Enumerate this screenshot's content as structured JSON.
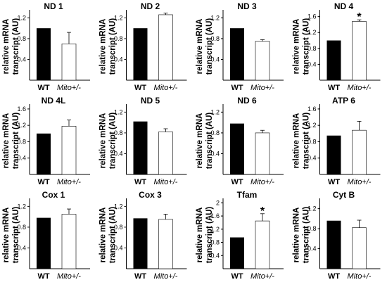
{
  "chart_data": [
    {
      "type": "bar",
      "title": "ND 1",
      "ylabel": "relative mRNA transcript (AU)",
      "categories": [
        "WT",
        "Mito+/-"
      ],
      "values": [
        1.0,
        0.7
      ],
      "errors": [
        0,
        0.22
      ],
      "yticks": [
        "0.4",
        "0.8",
        "1.2"
      ],
      "ylim": [
        0,
        1.3
      ],
      "significant": [
        false,
        false
      ]
    },
    {
      "type": "bar",
      "title": "ND 2",
      "ylabel": "relative mRNA transcript (AU)",
      "categories": [
        "WT",
        "Mito+/-"
      ],
      "values": [
        1.0,
        1.26
      ],
      "errors": [
        0,
        0.03
      ],
      "yticks": [
        "0.4",
        "0.8",
        "1.2"
      ],
      "ylim": [
        0,
        1.3
      ],
      "significant": [
        false,
        false
      ]
    },
    {
      "type": "bar",
      "title": "ND 3",
      "ylabel": "relative mRNA transcript (AU)",
      "categories": [
        "WT",
        "Mito+/-"
      ],
      "values": [
        1.0,
        0.75
      ],
      "errors": [
        0,
        0.03
      ],
      "yticks": [
        "0.4",
        "0.8",
        "1.2"
      ],
      "ylim": [
        0,
        1.3
      ],
      "significant": [
        false,
        false
      ]
    },
    {
      "type": "bar",
      "title": "ND 4",
      "ylabel": "relative mRNA transcript (AU)",
      "categories": [
        "WT",
        "Mito+/-"
      ],
      "values": [
        1.0,
        1.48
      ],
      "errors": [
        0,
        0.04
      ],
      "yticks": [
        "0.4",
        "0.8",
        "1.2",
        "1.6"
      ],
      "ylim": [
        0,
        1.7
      ],
      "significant": [
        false,
        true
      ]
    },
    {
      "type": "bar",
      "title": "ND 4L",
      "ylabel": "relative mRNA transcript (AU)",
      "categories": [
        "WT",
        "Mito+/-"
      ],
      "values": [
        1.0,
        1.18
      ],
      "errors": [
        0,
        0.15
      ],
      "yticks": [
        "0.4",
        "0.8",
        "1.2",
        "1.6"
      ],
      "ylim": [
        0,
        1.65
      ],
      "significant": [
        false,
        false
      ]
    },
    {
      "type": "bar",
      "title": "ND 5",
      "ylabel": "relative mRNA transcript (AU)",
      "categories": [
        "WT",
        "Mito+/-"
      ],
      "values": [
        1.02,
        0.82
      ],
      "errors": [
        0,
        0.06
      ],
      "yticks": [
        "0.4",
        "0.8",
        "1.2"
      ],
      "ylim": [
        0,
        1.3
      ],
      "significant": [
        false,
        false
      ]
    },
    {
      "type": "bar",
      "title": "ND 6",
      "ylabel": "relative mRNA transcript (AU)",
      "categories": [
        "WT",
        "Mito+/-"
      ],
      "values": [
        0.98,
        0.8
      ],
      "errors": [
        0,
        0.05
      ],
      "yticks": [
        "0.4",
        "0.8",
        "1.2"
      ],
      "ylim": [
        0,
        1.3
      ],
      "significant": [
        false,
        false
      ]
    },
    {
      "type": "bar",
      "title": "ATP 6",
      "ylabel": "relative mRNA transcript (AU)",
      "categories": [
        "WT",
        "Mito+/-"
      ],
      "values": [
        0.95,
        1.08
      ],
      "errors": [
        0,
        0.22
      ],
      "yticks": [
        "0.4",
        "0.8",
        "1.2",
        "1.6"
      ],
      "ylim": [
        0,
        1.65
      ],
      "significant": [
        false,
        false
      ]
    },
    {
      "type": "bar",
      "title": "Cox 1",
      "ylabel": "relative mRNA transcript (AU)",
      "categories": [
        "WT",
        "Mito+/-"
      ],
      "values": [
        0.98,
        1.05
      ],
      "errors": [
        0,
        0.1
      ],
      "yticks": [
        "0.4",
        "0.8",
        "1.2"
      ],
      "ylim": [
        0,
        1.3
      ],
      "significant": [
        false,
        false
      ]
    },
    {
      "type": "bar",
      "title": "Cox 3",
      "ylabel": "relative mRNA transcript (AU)",
      "categories": [
        "WT",
        "Mito+/-"
      ],
      "values": [
        0.97,
        0.95
      ],
      "errors": [
        0,
        0.1
      ],
      "yticks": [
        "0.4",
        "0.8",
        "1.2"
      ],
      "ylim": [
        0,
        1.3
      ],
      "significant": [
        false,
        false
      ]
    },
    {
      "type": "bar",
      "title": "Tfam",
      "ylabel": "relative mRNA transcript (AU)",
      "categories": [
        "WT",
        "Mito+/-"
      ],
      "values": [
        0.95,
        1.45
      ],
      "errors": [
        0,
        0.22
      ],
      "yticks": [
        "0.4",
        "0.8",
        "1.2",
        "1.6",
        "2"
      ],
      "ylim": [
        0,
        2.05
      ],
      "significant": [
        false,
        true
      ]
    },
    {
      "type": "bar",
      "title": "Cyt B",
      "ylabel": "relative mRNA transcript (AU)",
      "categories": [
        "WT",
        "Mito+/-"
      ],
      "values": [
        0.96,
        0.82
      ],
      "errors": [
        0,
        0.15
      ],
      "yticks": [
        "0.4",
        "0.8",
        "1.2"
      ],
      "ylim": [
        0,
        1.35
      ],
      "significant": [
        false,
        false
      ]
    }
  ],
  "colors": {
    "wt_bar": "#000000",
    "mito_bar": "#ffffff",
    "axis": "#000000"
  },
  "significance_marker": "*"
}
